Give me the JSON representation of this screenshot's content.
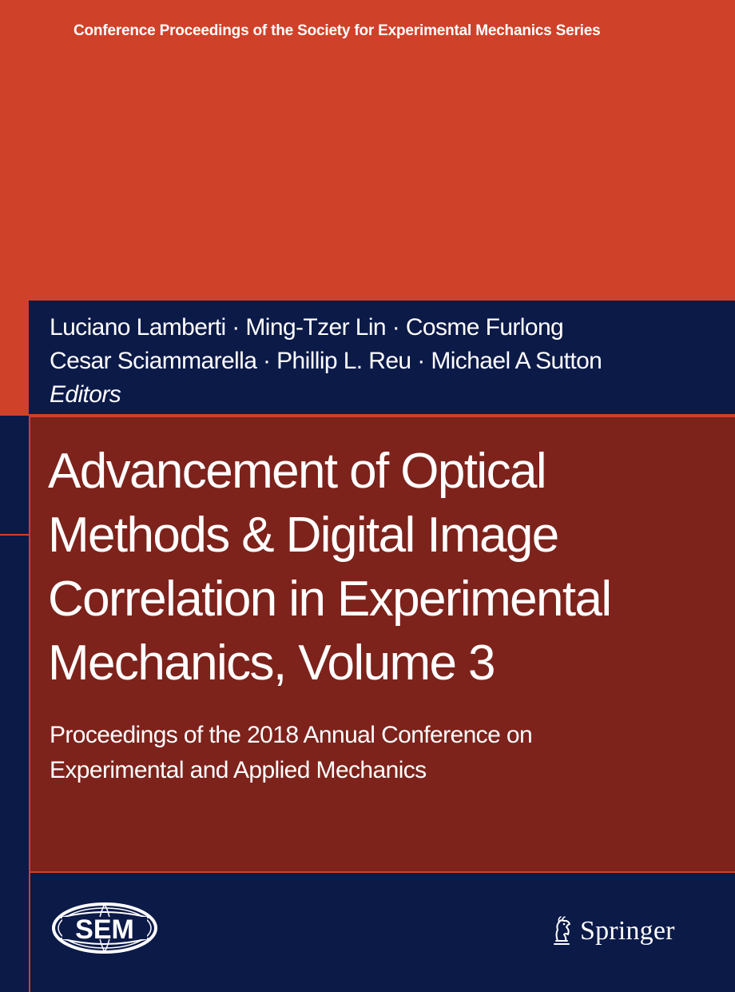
{
  "series": {
    "title": "Conference Proceedings of the Society for Experimental Mechanics Series"
  },
  "editors": {
    "line1": "Luciano Lamberti · Ming-Tzer Lin · Cosme Furlong",
    "line2": "Cesar Sciammarella · Phillip L. Reu · Michael A Sutton",
    "label": "Editors"
  },
  "book": {
    "title_lines": [
      "Advancement of Optical",
      "Methods & Digital Image",
      "Correlation in Experimental",
      "Mechanics, Volume 3"
    ],
    "subtitle_lines": [
      "Proceedings of the 2018 Annual Conference on",
      "Experimental and Applied Mechanics"
    ]
  },
  "logos": {
    "sem": "SEM",
    "publisher": "Springer"
  },
  "colors": {
    "orange": "#cf4129",
    "navy": "#0c1a48",
    "maroon": "#7d231c",
    "white": "#ffffff"
  },
  "icons": [
    "sem-globe-logo",
    "springer-horse-icon"
  ]
}
